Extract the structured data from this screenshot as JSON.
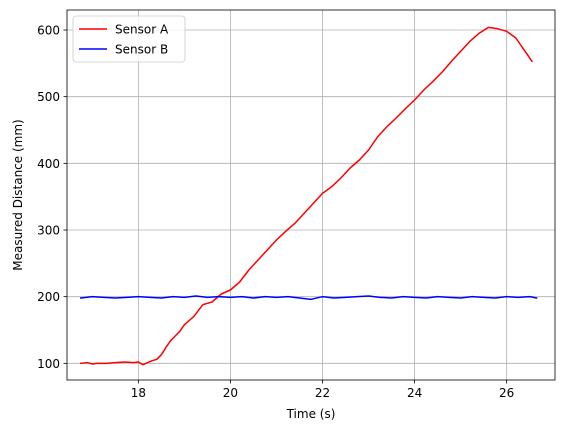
{
  "chart_data": {
    "type": "line",
    "title": "",
    "xlabel": "Time (s)",
    "ylabel": "Measured Distance (mm)",
    "xlim": [
      16.45,
      27.05
    ],
    "ylim": [
      75,
      630
    ],
    "xticks": [
      18,
      20,
      22,
      24,
      26
    ],
    "xtick_labels": [
      "18",
      "20",
      "22",
      "24",
      "26"
    ],
    "yticks": [
      100,
      200,
      300,
      400,
      500,
      600
    ],
    "ytick_labels": [
      "100",
      "200",
      "300",
      "400",
      "500",
      "600"
    ],
    "grid": true,
    "legend_position": "top-left",
    "series": [
      {
        "name": "Sensor A",
        "color": "#ff0000",
        "x": [
          16.75,
          16.9,
          17.0,
          17.1,
          17.3,
          17.5,
          17.7,
          17.9,
          18.0,
          18.1,
          18.2,
          18.3,
          18.4,
          18.5,
          18.6,
          18.7,
          18.8,
          18.9,
          19.0,
          19.2,
          19.4,
          19.6,
          19.8,
          20.0,
          20.2,
          20.4,
          20.6,
          20.8,
          21.0,
          21.2,
          21.4,
          21.6,
          21.8,
          22.0,
          22.2,
          22.4,
          22.6,
          22.8,
          23.0,
          23.2,
          23.4,
          23.6,
          23.8,
          24.0,
          24.2,
          24.4,
          24.6,
          24.8,
          25.0,
          25.2,
          25.4,
          25.6,
          25.8,
          26.0,
          26.2,
          26.4,
          26.55
        ],
        "y": [
          100,
          101,
          99,
          100,
          100,
          101,
          102,
          101,
          102,
          98,
          101,
          104,
          106,
          113,
          124,
          134,
          141,
          148,
          158,
          170,
          188,
          192,
          204,
          210,
          222,
          240,
          255,
          270,
          285,
          298,
          310,
          325,
          340,
          355,
          365,
          378,
          393,
          405,
          420,
          440,
          455,
          468,
          482,
          495,
          510,
          523,
          537,
          553,
          568,
          583,
          595,
          604,
          602,
          598,
          588,
          568,
          553
        ]
      },
      {
        "name": "Sensor B",
        "color": "#0000ff",
        "x": [
          16.75,
          17.0,
          17.25,
          17.5,
          17.75,
          18.0,
          18.25,
          18.5,
          18.75,
          19.0,
          19.25,
          19.5,
          19.75,
          20.0,
          20.25,
          20.5,
          20.75,
          21.0,
          21.25,
          21.5,
          21.75,
          22.0,
          22.25,
          22.5,
          22.75,
          23.0,
          23.25,
          23.5,
          23.75,
          24.0,
          24.25,
          24.5,
          24.75,
          25.0,
          25.25,
          25.5,
          25.75,
          26.0,
          26.25,
          26.5,
          26.65
        ],
        "y": [
          198,
          200,
          199,
          198,
          199,
          200,
          199,
          198,
          200,
          199,
          201,
          199,
          200,
          199,
          200,
          198,
          200,
          199,
          200,
          198,
          196,
          200,
          198,
          199,
          200,
          201,
          199,
          198,
          200,
          199,
          198,
          200,
          199,
          198,
          200,
          199,
          198,
          200,
          199,
          200,
          198
        ]
      }
    ]
  }
}
